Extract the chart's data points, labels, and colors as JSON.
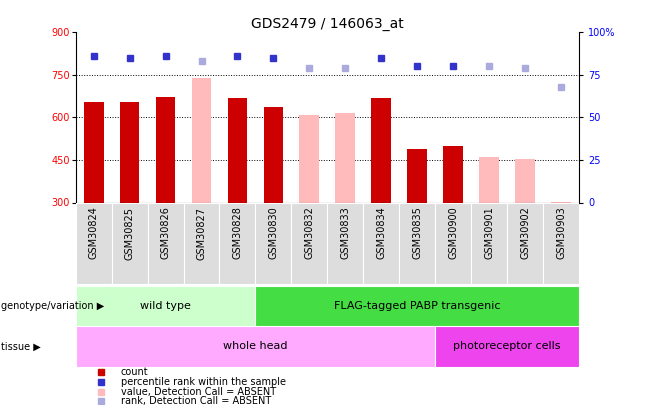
{
  "title": "GDS2479 / 146063_at",
  "samples": [
    "GSM30824",
    "GSM30825",
    "GSM30826",
    "GSM30827",
    "GSM30828",
    "GSM30830",
    "GSM30832",
    "GSM30833",
    "GSM30834",
    "GSM30835",
    "GSM30900",
    "GSM30901",
    "GSM30902",
    "GSM30903"
  ],
  "bar_values": [
    655,
    655,
    672,
    740,
    670,
    638,
    610,
    615,
    668,
    490,
    500,
    462,
    452,
    302
  ],
  "bar_colors": [
    "#cc0000",
    "#cc0000",
    "#cc0000",
    "#ffbbbb",
    "#cc0000",
    "#cc0000",
    "#ffbbbb",
    "#ffbbbb",
    "#cc0000",
    "#cc0000",
    "#cc0000",
    "#ffbbbb",
    "#ffbbbb",
    "#ffbbbb"
  ],
  "dot_values": [
    86,
    85,
    86,
    83,
    86,
    85,
    79,
    79,
    85,
    80,
    80,
    80,
    79,
    68
  ],
  "dot_colors": [
    "#3333cc",
    "#3333cc",
    "#3333cc",
    "#aaaadd",
    "#3333cc",
    "#3333cc",
    "#aaaadd",
    "#aaaadd",
    "#3333cc",
    "#3333cc",
    "#3333cc",
    "#aaaadd",
    "#aaaadd",
    "#aaaadd"
  ],
  "ymin": 300,
  "ymax": 900,
  "yticks": [
    300,
    450,
    600,
    750,
    900
  ],
  "y2min": 0,
  "y2max": 100,
  "y2ticks": [
    0,
    25,
    50,
    75,
    100
  ],
  "grid_values": [
    450,
    600,
    750
  ],
  "bar_bottom": 300,
  "genotype_groups": [
    {
      "label": "wild type",
      "start": 0,
      "end": 5,
      "color": "#ccffcc"
    },
    {
      "label": "FLAG-tagged PABP transgenic",
      "start": 5,
      "end": 14,
      "color": "#44dd44"
    }
  ],
  "tissue_groups": [
    {
      "label": "whole head",
      "start": 0,
      "end": 10,
      "color": "#ffaaff"
    },
    {
      "label": "photoreceptor cells",
      "start": 10,
      "end": 14,
      "color": "#ee44ee"
    }
  ],
  "legend_items": [
    {
      "label": "count",
      "color": "#cc0000"
    },
    {
      "label": "percentile rank within the sample",
      "color": "#3333cc"
    },
    {
      "label": "value, Detection Call = ABSENT",
      "color": "#ffbbbb"
    },
    {
      "label": "rank, Detection Call = ABSENT",
      "color": "#aaaadd"
    }
  ],
  "title_fontsize": 10,
  "tick_fontsize": 7,
  "label_fontsize": 8
}
